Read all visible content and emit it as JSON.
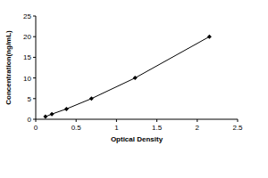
{
  "chart_data": {
    "type": "scatter",
    "x_label": "Optical Density",
    "y_label": "Concentration(ng/mL)",
    "x": [
      0.12,
      0.2,
      0.38,
      0.69,
      1.23,
      2.15
    ],
    "values": [
      0.625,
      1.25,
      2.5,
      5,
      10,
      20
    ],
    "color": "#000000",
    "marker": "diamond",
    "line_style": "solid",
    "xlim": [
      0,
      2.5
    ],
    "xticks": [
      0,
      0.5,
      1,
      1.5,
      2,
      2.5
    ],
    "ylim": [
      0,
      25
    ],
    "yticks": [
      0,
      5,
      10,
      15,
      20,
      25
    ],
    "grid": false
  }
}
